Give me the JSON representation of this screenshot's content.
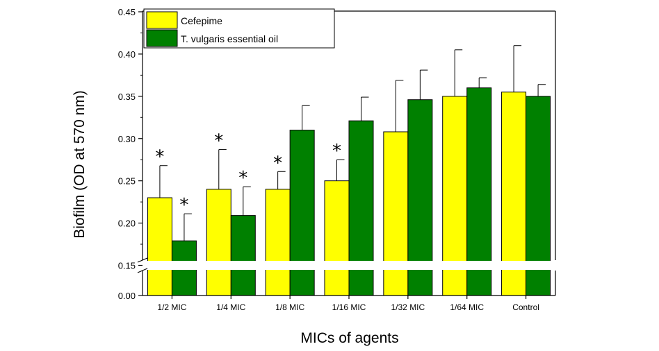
{
  "chart_data": {
    "type": "bar",
    "xlabel": "MICs of agents",
    "ylabel": "Biofilm (OD at 570 nm)",
    "categories": [
      "1/2 MIC",
      "1/4 MIC",
      "1/8 MIC",
      "1/16 MIC",
      "1/32 MIC",
      "1/64 MIC",
      "Control"
    ],
    "series": [
      {
        "name": "Cefepime",
        "color": "#ffff00",
        "values": [
          0.23,
          0.24,
          0.24,
          0.25,
          0.308,
          0.35,
          0.355
        ],
        "errors": [
          0.038,
          0.047,
          0.021,
          0.025,
          0.061,
          0.055,
          0.055
        ],
        "significant": [
          true,
          true,
          true,
          true,
          false,
          false,
          false
        ]
      },
      {
        "name": "T. vulgaris essential oil",
        "color": "#008000",
        "values": [
          0.179,
          0.209,
          0.31,
          0.321,
          0.346,
          0.36,
          0.35
        ],
        "errors": [
          0.032,
          0.034,
          0.029,
          0.028,
          0.035,
          0.012,
          0.014
        ],
        "significant": [
          true,
          true,
          false,
          false,
          false,
          false,
          false
        ]
      }
    ],
    "significance_marker": "*",
    "ylim": [
      0.0,
      0.45
    ],
    "axis_break": [
      0.0,
      0.15
    ],
    "yticks": [
      "0.00",
      "0.15",
      "0.20",
      "0.25",
      "0.30",
      "0.35",
      "0.40",
      "0.45"
    ],
    "legend_position": "top-left",
    "grid": false
  }
}
